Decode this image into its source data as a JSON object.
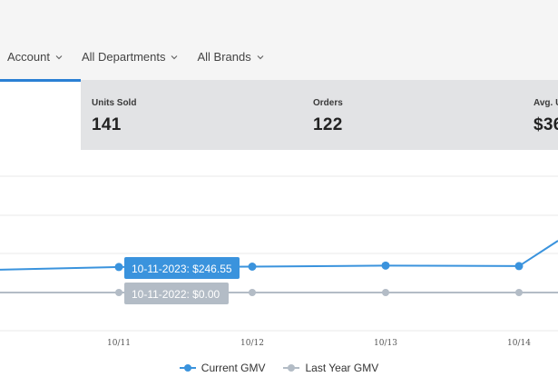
{
  "filters": [
    {
      "label": "Account"
    },
    {
      "label": "All Departments"
    },
    {
      "label": "All Brands"
    }
  ],
  "kpis": [
    {
      "label": "Units Sold",
      "value": "141"
    },
    {
      "label": "Orders",
      "value": "122"
    },
    {
      "label": "Avg. U",
      "value": "$36"
    }
  ],
  "colors": {
    "current": "#3a93dd",
    "last_year": "#b3bcc6",
    "accent": "#2a80d4"
  },
  "chart_data": {
    "type": "line",
    "categories": [
      "10/11",
      "10/12",
      "10/13",
      "10/14"
    ],
    "series": [
      {
        "name": "Current GMV",
        "values": [
          246.55,
          250,
          260,
          255
        ]
      },
      {
        "name": "Last Year GMV",
        "values": [
          0,
          0,
          0,
          0
        ]
      }
    ]
  },
  "tooltips": {
    "current": "10-11-2023: $246.55",
    "last_year": "10-11-2022: $0.00"
  },
  "legend": {
    "current": "Current GMV",
    "last_year": "Last Year GMV"
  }
}
